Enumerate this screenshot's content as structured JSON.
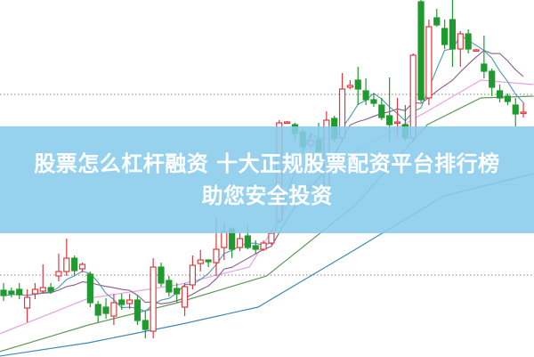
{
  "banner": {
    "line1": "股票怎么杠杆融资 十大正规股票配资平台排行榜",
    "line2": "助您安全投资"
  },
  "chart_data": {
    "type": "candlestick",
    "title": "",
    "xlabel": "",
    "ylabel": "",
    "ylim": [
      0,
      40
    ],
    "grid": "horizontal-dotted",
    "grid_levels": [
      9.1,
      19.2,
      29.4
    ],
    "colors": {
      "up": "#e0393e",
      "down": "#1f9a2f",
      "ma_fast": "#4a9ab4",
      "ma_mid": "#8a5a8c",
      "ma_pink": "#eaa2e4",
      "ma_green": "#5f9a5a",
      "ma_blue": "#3d8bb4",
      "banner": "#87ccea"
    },
    "candles": [
      [
        7.4,
        6.8,
        8.2,
        6.2
      ],
      [
        7.3,
        7.0,
        7.7,
        6.6
      ],
      [
        7.5,
        6.9,
        8.2,
        6.4
      ],
      [
        5.4,
        6.6,
        7.5,
        3.8
      ],
      [
        7.0,
        7.5,
        8.2,
        6.4
      ],
      [
        7.3,
        7.7,
        10.3,
        7.0
      ],
      [
        7.7,
        7.3,
        8.2,
        7.0
      ],
      [
        9.0,
        9.5,
        11.5,
        8.4
      ],
      [
        9.5,
        11.0,
        13.2,
        9.0
      ],
      [
        11.0,
        9.6,
        11.3,
        9.0
      ],
      [
        9.8,
        10.3,
        10.5,
        9.4
      ],
      [
        9.2,
        6.0,
        9.5,
        5.5
      ],
      [
        5.8,
        4.6,
        6.2,
        3.8
      ],
      [
        5.5,
        4.8,
        6.5,
        4.2
      ],
      [
        4.5,
        6.0,
        7.0,
        3.5
      ],
      [
        6.3,
        5.8,
        7.0,
        5.2
      ],
      [
        5.9,
        6.3,
        7.0,
        5.3
      ],
      [
        6.3,
        4.0,
        6.8,
        3.5
      ],
      [
        4.0,
        3.0,
        5.0,
        2.0
      ],
      [
        2.8,
        10.0,
        11.0,
        2.0
      ],
      [
        10.0,
        8.2,
        10.5,
        7.8
      ],
      [
        8.5,
        7.2,
        9.0,
        6.7
      ],
      [
        7.6,
        7.0,
        8.2,
        6.0
      ],
      [
        5.5,
        7.8,
        8.2,
        4.5
      ],
      [
        8.0,
        10.2,
        11.3,
        7.5
      ],
      [
        10.4,
        10.8,
        11.9,
        9.5
      ],
      [
        10.8,
        10.6,
        10.8,
        10.0
      ],
      [
        10.5,
        12.0,
        15.6,
        9.0
      ],
      [
        12.2,
        14.0,
        15.0,
        10.8
      ],
      [
        14.3,
        12.0,
        14.5,
        11.0
      ],
      [
        12.2,
        13.2,
        13.8,
        11.8
      ],
      [
        13.5,
        12.2,
        14.8,
        12.0
      ],
      [
        12.4,
        12.0,
        13.0,
        11.5
      ],
      [
        12.0,
        12.7,
        13.0,
        11.8
      ],
      [
        12.7,
        13.8,
        14.2,
        12.5
      ],
      [
        15.2,
        26.2,
        26.5,
        15.0
      ],
      [
        26.2,
        26.3,
        26.4,
        26.1
      ],
      [
        26.0,
        25.0,
        26.2,
        24.2
      ],
      [
        25.2,
        23.5,
        25.5,
        23.0
      ],
      [
        23.7,
        24.2,
        25.0,
        23.4
      ],
      [
        24.3,
        23.0,
        26.2,
        22.8
      ],
      [
        19.0,
        26.5,
        27.5,
        18.5
      ],
      [
        26.7,
        24.5,
        27.0,
        24.0
      ],
      [
        24.5,
        30.0,
        31.8,
        24.0
      ],
      [
        30.2,
        30.4,
        31.0,
        30.0
      ],
      [
        31.0,
        30.0,
        32.5,
        28.2
      ],
      [
        29.8,
        28.8,
        31.2,
        28.2
      ],
      [
        28.8,
        28.4,
        29.5,
        28.0
      ],
      [
        28.2,
        26.8,
        29.0,
        26.5
      ],
      [
        27.0,
        26.0,
        31.3,
        24.2
      ],
      [
        26.2,
        26.3,
        29.0,
        24.5
      ],
      [
        26.0,
        24.5,
        28.2,
        24.2
      ],
      [
        24.5,
        33.8,
        34.0,
        24.0
      ],
      [
        39.8,
        28.8,
        40.0,
        28.5
      ],
      [
        29.0,
        37.0,
        37.8,
        28.2
      ],
      [
        38.0,
        37.2,
        39.0,
        37.0
      ],
      [
        36.8,
        35.0,
        37.8,
        34.5
      ],
      [
        37.8,
        34.5,
        40.0,
        32.5
      ],
      [
        34.5,
        36.2,
        36.5,
        32.5
      ],
      [
        36.2,
        34.5,
        36.7,
        34.0
      ],
      [
        34.3,
        34.4,
        34.5,
        34.2
      ],
      [
        32.8,
        32.0,
        36.0,
        31.2
      ],
      [
        32.0,
        30.2,
        32.3,
        29.2
      ],
      [
        29.8,
        29.0,
        30.5,
        28.5
      ],
      [
        29.2,
        28.6,
        29.5,
        28.2
      ],
      [
        28.2,
        27.2,
        29.0,
        25.8
      ],
      [
        27.3,
        27.4,
        28.5,
        26.8
      ]
    ],
    "candle_fields": [
      "open",
      "close",
      "high",
      "low"
    ],
    "lines": [
      {
        "color_key": "ma_pink",
        "points": [
          [
            -0.5,
            2.5
          ],
          [
            10.8,
            6.5
          ],
          [
            22.1,
            8.0
          ],
          [
            31.2,
            10.0
          ],
          [
            36.8,
            18.0
          ],
          [
            44.7,
            23.0
          ],
          [
            53.8,
            27.5
          ],
          [
            60.6,
            31.0
          ],
          [
            67.3,
            30.5
          ]
        ]
      },
      {
        "color_key": "ma_green",
        "points": [
          [
            -0.5,
            0.5
          ],
          [
            10.8,
            3.5
          ],
          [
            22.1,
            6.0
          ],
          [
            33.4,
            9.0
          ],
          [
            44.7,
            17.0
          ],
          [
            53.8,
            26.0
          ],
          [
            60.6,
            29.0
          ],
          [
            67.3,
            29.2
          ]
        ]
      },
      {
        "color_key": "ma_blue",
        "points": [
          [
            -0.5,
            0.0
          ],
          [
            10.8,
            1.5
          ],
          [
            22.1,
            3.5
          ],
          [
            32.3,
            5.5
          ],
          [
            44.7,
            12.0
          ],
          [
            55.9,
            18.0
          ],
          [
            67.3,
            20.5
          ]
        ]
      }
    ]
  }
}
